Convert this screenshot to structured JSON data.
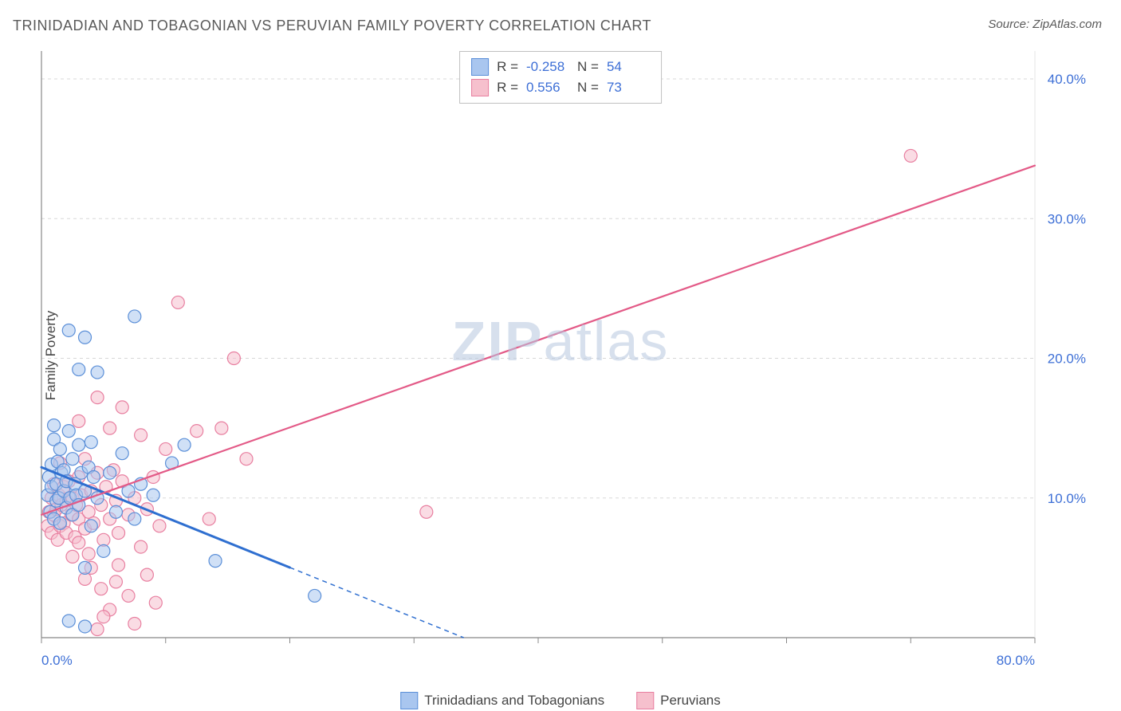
{
  "title": "TRINIDADIAN AND TOBAGONIAN VS PERUVIAN FAMILY POVERTY CORRELATION CHART",
  "source_prefix": "Source: ",
  "source_name": "ZipAtlas.com",
  "ylabel": "Family Poverty",
  "watermark_bold": "ZIP",
  "watermark_rest": "atlas",
  "chart": {
    "type": "scatter-with-regression",
    "background_color": "#ffffff",
    "grid_color": "#d8d8d8",
    "grid_dash": "4,4",
    "axis_color": "#888888",
    "xlim": [
      0,
      80
    ],
    "ylim": [
      0,
      42
    ],
    "xtick_labels": [
      {
        "v": 0,
        "label": "0.0%"
      },
      {
        "v": 80,
        "label": "80.0%"
      }
    ],
    "xtick_positions": [
      0,
      10,
      20,
      30,
      40,
      50,
      60,
      70,
      80
    ],
    "ytick_labels": [
      {
        "v": 10,
        "label": "10.0%"
      },
      {
        "v": 20,
        "label": "20.0%"
      },
      {
        "v": 30,
        "label": "30.0%"
      },
      {
        "v": 40,
        "label": "40.0%"
      }
    ],
    "marker_radius": 8,
    "marker_opacity": 0.55,
    "marker_stroke_width": 1.2,
    "series": [
      {
        "key": "trinidadians",
        "label": "Trinidadians and Tobagonians",
        "fill": "#a9c6ef",
        "stroke": "#5b8fd8",
        "line_color": "#2f6fd0",
        "line_width": 3,
        "R": "-0.258",
        "N": "54",
        "regression": {
          "x1": 0,
          "y1": 12.2,
          "x2": 34,
          "y2": 0,
          "dash_after_x": 20,
          "dash": "6,5"
        },
        "points": [
          [
            0.5,
            10.2
          ],
          [
            0.6,
            11.5
          ],
          [
            0.7,
            9.0
          ],
          [
            0.8,
            10.8
          ],
          [
            0.8,
            12.4
          ],
          [
            1.0,
            8.5
          ],
          [
            1.0,
            14.2
          ],
          [
            1.2,
            11.0
          ],
          [
            1.2,
            9.8
          ],
          [
            1.3,
            12.6
          ],
          [
            1.4,
            10.0
          ],
          [
            1.5,
            13.5
          ],
          [
            1.5,
            8.2
          ],
          [
            1.6,
            11.8
          ],
          [
            1.8,
            10.5
          ],
          [
            1.8,
            12.0
          ],
          [
            2.0,
            9.3
          ],
          [
            2.0,
            11.2
          ],
          [
            2.2,
            14.8
          ],
          [
            2.3,
            10.0
          ],
          [
            2.5,
            8.8
          ],
          [
            2.5,
            12.8
          ],
          [
            2.7,
            11.0
          ],
          [
            2.8,
            10.2
          ],
          [
            3.0,
            13.8
          ],
          [
            3.0,
            9.5
          ],
          [
            3.2,
            11.8
          ],
          [
            3.5,
            10.5
          ],
          [
            3.5,
            5.0
          ],
          [
            3.8,
            12.2
          ],
          [
            4.0,
            14.0
          ],
          [
            4.0,
            8.0
          ],
          [
            4.2,
            11.5
          ],
          [
            4.5,
            10.0
          ],
          [
            5.0,
            6.2
          ],
          [
            5.5,
            11.8
          ],
          [
            6.0,
            9.0
          ],
          [
            6.5,
            13.2
          ],
          [
            7.0,
            10.5
          ],
          [
            7.5,
            8.5
          ],
          [
            8.0,
            11.0
          ],
          [
            9.0,
            10.2
          ],
          [
            2.2,
            22.0
          ],
          [
            3.0,
            19.2
          ],
          [
            3.5,
            21.5
          ],
          [
            4.5,
            19.0
          ],
          [
            7.5,
            23.0
          ],
          [
            2.2,
            1.2
          ],
          [
            3.5,
            0.8
          ],
          [
            14.0,
            5.5
          ],
          [
            10.5,
            12.5
          ],
          [
            11.5,
            13.8
          ],
          [
            22.0,
            3.0
          ],
          [
            1.0,
            15.2
          ]
        ]
      },
      {
        "key": "peruvians",
        "label": "Peruvians",
        "fill": "#f6c0cd",
        "stroke": "#e87fa0",
        "line_color": "#e35a87",
        "line_width": 2.2,
        "R": "0.556",
        "N": "73",
        "regression": {
          "x1": 0,
          "y1": 8.8,
          "x2": 80,
          "y2": 33.8
        },
        "points": [
          [
            0.5,
            8.0
          ],
          [
            0.6,
            9.0
          ],
          [
            0.8,
            10.0
          ],
          [
            0.8,
            7.5
          ],
          [
            1.0,
            8.8
          ],
          [
            1.0,
            11.0
          ],
          [
            1.2,
            9.2
          ],
          [
            1.3,
            7.0
          ],
          [
            1.4,
            10.2
          ],
          [
            1.5,
            8.0
          ],
          [
            1.5,
            12.5
          ],
          [
            1.6,
            9.5
          ],
          [
            1.8,
            8.2
          ],
          [
            1.8,
            10.8
          ],
          [
            2.0,
            7.5
          ],
          [
            2.0,
            9.8
          ],
          [
            2.2,
            11.2
          ],
          [
            2.4,
            8.8
          ],
          [
            2.5,
            10.0
          ],
          [
            2.7,
            7.2
          ],
          [
            2.8,
            9.5
          ],
          [
            3.0,
            11.5
          ],
          [
            3.0,
            8.5
          ],
          [
            3.2,
            10.2
          ],
          [
            3.5,
            7.8
          ],
          [
            3.5,
            12.8
          ],
          [
            3.8,
            9.0
          ],
          [
            4.0,
            10.5
          ],
          [
            4.0,
            5.0
          ],
          [
            4.2,
            8.2
          ],
          [
            4.5,
            11.8
          ],
          [
            4.8,
            9.5
          ],
          [
            5.0,
            7.0
          ],
          [
            5.2,
            10.8
          ],
          [
            5.5,
            8.5
          ],
          [
            5.8,
            12.0
          ],
          [
            6.0,
            9.8
          ],
          [
            6.2,
            7.5
          ],
          [
            6.5,
            11.2
          ],
          [
            7.0,
            8.8
          ],
          [
            7.5,
            10.0
          ],
          [
            8.0,
            6.5
          ],
          [
            8.5,
            9.2
          ],
          [
            9.0,
            11.5
          ],
          [
            9.5,
            8.0
          ],
          [
            10.0,
            13.5
          ],
          [
            3.0,
            15.5
          ],
          [
            4.5,
            17.2
          ],
          [
            5.5,
            15.0
          ],
          [
            6.5,
            16.5
          ],
          [
            8.0,
            14.5
          ],
          [
            3.5,
            4.2
          ],
          [
            4.8,
            3.5
          ],
          [
            5.5,
            2.0
          ],
          [
            6.2,
            5.2
          ],
          [
            7.0,
            3.0
          ],
          [
            7.5,
            1.0
          ],
          [
            8.5,
            4.5
          ],
          [
            9.2,
            2.5
          ],
          [
            4.5,
            0.6
          ],
          [
            5.0,
            1.5
          ],
          [
            11.0,
            24.0
          ],
          [
            12.5,
            14.8
          ],
          [
            13.5,
            8.5
          ],
          [
            14.5,
            15.0
          ],
          [
            15.5,
            20.0
          ],
          [
            16.5,
            12.8
          ],
          [
            31.0,
            9.0
          ],
          [
            70.0,
            34.5
          ],
          [
            2.5,
            5.8
          ],
          [
            3.0,
            6.8
          ],
          [
            3.8,
            6.0
          ],
          [
            6.0,
            4.0
          ]
        ]
      }
    ]
  },
  "legend_top": {
    "R_label": "R =",
    "N_label": "N ="
  }
}
